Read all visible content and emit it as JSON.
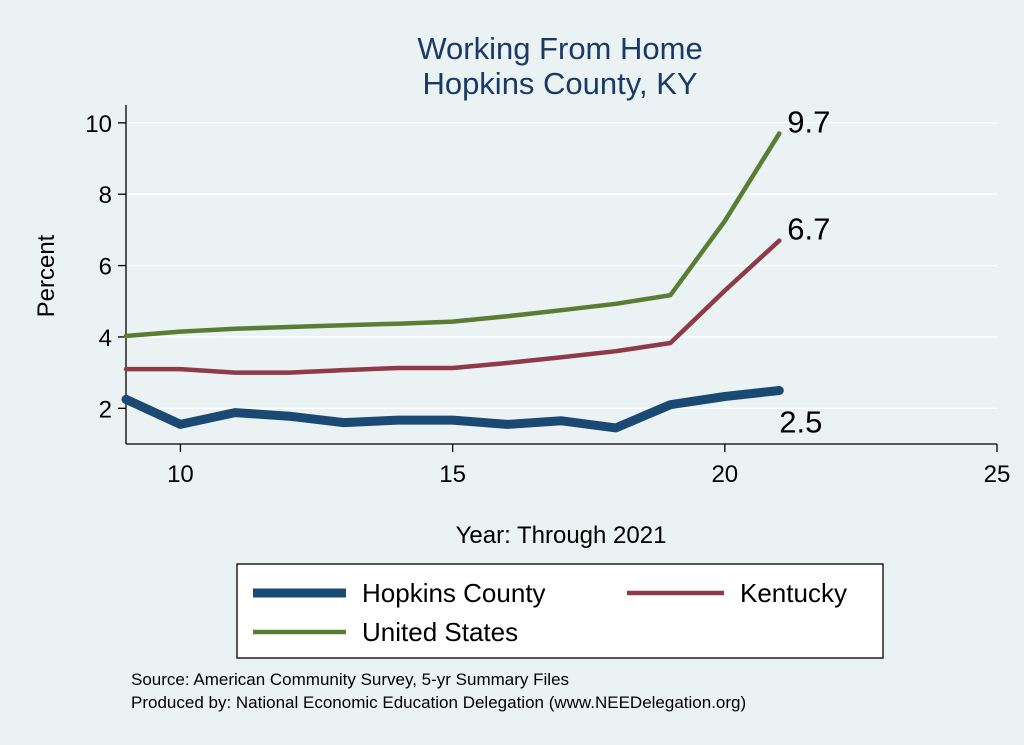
{
  "chart_data": {
    "type": "line",
    "title": [
      "Working From Home",
      "Hopkins County, KY"
    ],
    "xlabel": "Year: Through 2021",
    "ylabel": "Percent",
    "xlim": [
      9,
      25
    ],
    "ylim": [
      1,
      10.5
    ],
    "xticks": [
      10,
      15,
      20,
      25
    ],
    "yticks": [
      2,
      4,
      6,
      8,
      10
    ],
    "grid": true,
    "legend_position": "bottom",
    "x": [
      9,
      10,
      11,
      12,
      13,
      14,
      15,
      16,
      17,
      18,
      19,
      20,
      21
    ],
    "series": [
      {
        "name": "Hopkins County",
        "color": "#1a4a73",
        "stroke_weight": "thick",
        "values": [
          2.25,
          1.55,
          1.88,
          1.78,
          1.6,
          1.67,
          1.67,
          1.55,
          1.65,
          1.45,
          2.1,
          2.33,
          2.5
        ],
        "end_label": "2.5",
        "end_label_placement": "below"
      },
      {
        "name": "Kentucky",
        "color": "#8f3a46",
        "stroke_weight": "medium",
        "values": [
          3.1,
          3.1,
          3.0,
          3.0,
          3.07,
          3.13,
          3.13,
          3.27,
          3.43,
          3.6,
          3.83,
          5.3,
          6.7
        ],
        "end_label": "6.7",
        "end_label_placement": "right"
      },
      {
        "name": "United States",
        "color": "#5a7d34",
        "stroke_weight": "medium",
        "values": [
          4.03,
          4.15,
          4.23,
          4.28,
          4.33,
          4.37,
          4.43,
          4.58,
          4.75,
          4.93,
          5.17,
          7.25,
          9.7
        ],
        "end_label": "9.7",
        "end_label_placement": "right"
      }
    ]
  },
  "footer": {
    "source": "Source: American Community Survey, 5-yr Summary Files",
    "produced": "Produced by: National Economic Education Delegation (www.NEEDelegation.org)"
  }
}
